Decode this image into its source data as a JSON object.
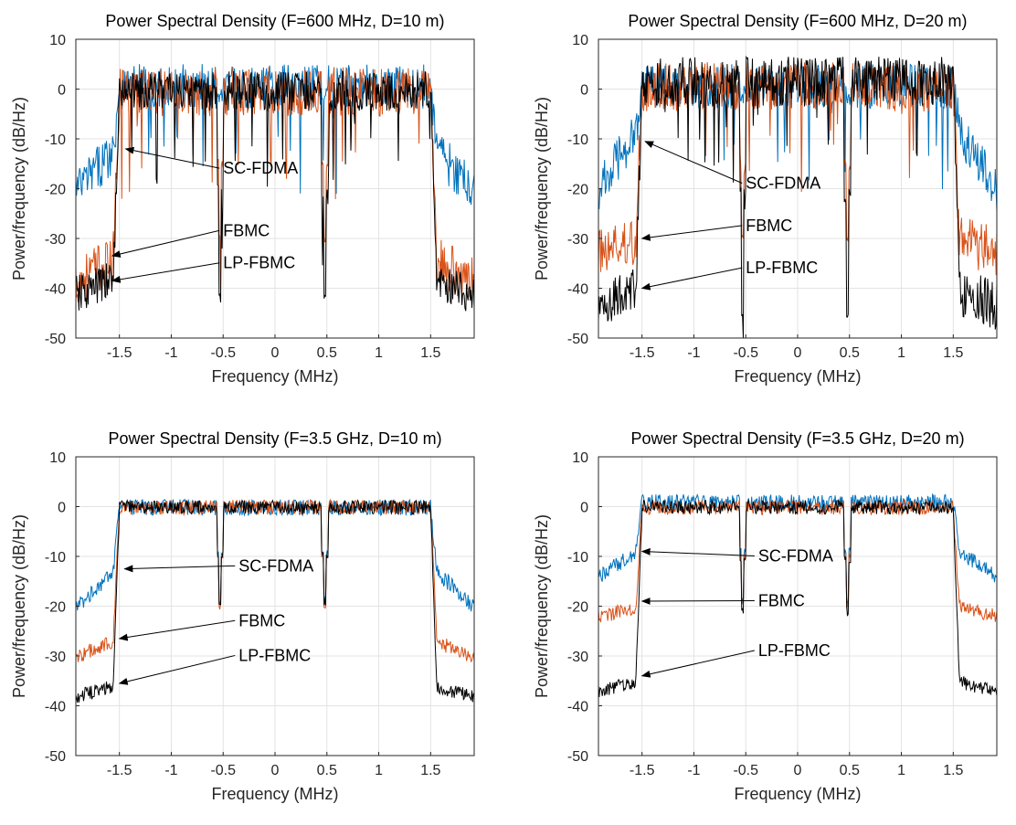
{
  "chart_data": [
    {
      "type": "line",
      "title": "Power Spectral Density (F=600 MHz, D=10 m)",
      "xlabel": "Frequency (MHz)",
      "ylabel": "Power/frequency (dB/Hz)",
      "xlim": [
        -1.92,
        1.92
      ],
      "ylim": [
        -50,
        10
      ],
      "xticks": [
        -1.5,
        -1,
        -0.5,
        0,
        0.5,
        1,
        1.5
      ],
      "xtick_labels": [
        "-1.5",
        "-1",
        "-0.5",
        "0",
        "0.5",
        "1",
        "1.5"
      ],
      "yticks": [
        10,
        0,
        -10,
        -20,
        -30,
        -40,
        -50
      ],
      "ytick_labels": [
        "10",
        "0",
        "-10",
        "-20",
        "-30",
        "-40",
        "-50"
      ],
      "grid": true,
      "series": [
        {
          "key": "scfdma",
          "color": "#0072BD",
          "profile": {
            "in_band": 1,
            "out_band": -20,
            "edge_db": -12,
            "notch": -2,
            "noise": 4.5
          }
        },
        {
          "key": "fbmc",
          "color": "#D95319",
          "profile": {
            "in_band": 0,
            "out_band": -38,
            "edge_db": -34,
            "notch": -30,
            "noise": 5
          }
        },
        {
          "key": "lpfbmc",
          "color": "#000000",
          "profile": {
            "in_band": 0,
            "out_band": -41,
            "edge_db": -38,
            "notch": -42,
            "noise": 4
          }
        }
      ],
      "annotations": [
        {
          "text": "SC-FDMA",
          "text_at": [
            -0.5,
            -17
          ],
          "arrow_to": [
            -1.44,
            -12
          ]
        },
        {
          "text": "FBMC",
          "text_at": [
            -0.5,
            -29.5
          ],
          "arrow_to": [
            -1.57,
            -33.5
          ]
        },
        {
          "text": "LP-FBMC",
          "text_at": [
            -0.5,
            -36
          ],
          "arrow_to": [
            -1.57,
            -38.5
          ]
        }
      ]
    },
    {
      "type": "line",
      "title": "Power Spectral Density (F=600 MHz, D=20 m)",
      "xlabel": "Frequency (MHz)",
      "ylabel": "Power/frequency (dB/Hz)",
      "xlim": [
        -1.92,
        1.92
      ],
      "ylim": [
        -50,
        10
      ],
      "xticks": [
        -1.5,
        -1,
        -0.5,
        0,
        0.5,
        1,
        1.5
      ],
      "xtick_labels": [
        "-1.5",
        "-1",
        "-0.5",
        "0",
        "0.5",
        "1",
        "1.5"
      ],
      "yticks": [
        10,
        0,
        -10,
        -20,
        -30,
        -40,
        -50
      ],
      "ytick_labels": [
        "10",
        "0",
        "-10",
        "-20",
        "-30",
        "-40",
        "-50"
      ],
      "grid": true,
      "series": [
        {
          "key": "scfdma",
          "color": "#0072BD",
          "profile": {
            "in_band": 1,
            "out_band": -20,
            "edge_db": -8,
            "notch": -2,
            "noise": 4.5
          }
        },
        {
          "key": "fbmc",
          "color": "#D95319",
          "profile": {
            "in_band": 1,
            "out_band": -32,
            "edge_db": -30,
            "notch": -30,
            "noise": 5
          }
        },
        {
          "key": "lpfbmc",
          "color": "#000000",
          "profile": {
            "in_band": 2,
            "out_band": -43,
            "edge_db": -40,
            "notch": -45,
            "noise": 5
          }
        }
      ],
      "annotations": [
        {
          "text": "SC-FDMA",
          "text_at": [
            -0.5,
            -20
          ],
          "arrow_to": [
            -1.47,
            -10.5
          ]
        },
        {
          "text": "FBMC",
          "text_at": [
            -0.5,
            -28.5
          ],
          "arrow_to": [
            -1.5,
            -30
          ]
        },
        {
          "text": "LP-FBMC",
          "text_at": [
            -0.5,
            -37
          ],
          "arrow_to": [
            -1.5,
            -40
          ]
        }
      ]
    },
    {
      "type": "line",
      "title": "Power Spectral Density (F=3.5 GHz, D=10 m)",
      "xlabel": "Frequency (MHz)",
      "ylabel": "Power/frequency (dB/Hz)",
      "xlim": [
        -1.92,
        1.92
      ],
      "ylim": [
        -50,
        10
      ],
      "xticks": [
        -1.5,
        -1,
        -0.5,
        0,
        0.5,
        1,
        1.5
      ],
      "xtick_labels": [
        "-1.5",
        "-1",
        "-0.5",
        "0",
        "0.5",
        "1",
        "1.5"
      ],
      "yticks": [
        10,
        0,
        -10,
        -20,
        -30,
        -40,
        -50
      ],
      "ytick_labels": [
        "10",
        "0",
        "-10",
        "-20",
        "-30",
        "-40",
        "-50"
      ],
      "grid": true,
      "series": [
        {
          "key": "scfdma",
          "color": "#0072BD",
          "profile": {
            "in_band": 0,
            "out_band": -20,
            "edge_db": -13,
            "notch": -19,
            "noise": 1.6
          }
        },
        {
          "key": "fbmc",
          "color": "#D95319",
          "profile": {
            "in_band": 0,
            "out_band": -30,
            "edge_db": -27,
            "notch": -20,
            "noise": 1.5
          }
        },
        {
          "key": "lpfbmc",
          "color": "#000000",
          "profile": {
            "in_band": 0,
            "out_band": -38,
            "edge_db": -36,
            "notch": -19,
            "noise": 1.4
          }
        }
      ],
      "annotations": [
        {
          "text": "SC-FDMA",
          "text_at": [
            -0.35,
            -13
          ],
          "arrow_to": [
            -1.45,
            -12.5
          ]
        },
        {
          "text": "FBMC",
          "text_at": [
            -0.35,
            -24
          ],
          "arrow_to": [
            -1.5,
            -26.5
          ]
        },
        {
          "text": "LP-FBMC",
          "text_at": [
            -0.35,
            -31
          ],
          "arrow_to": [
            -1.5,
            -35.5
          ]
        }
      ]
    },
    {
      "type": "line",
      "title": "Power Spectral Density (F=3.5 GHz, D=20 m)",
      "xlabel": "Frequency (MHz)",
      "ylabel": "Power/frequency (dB/Hz)",
      "xlim": [
        -1.92,
        1.92
      ],
      "ylim": [
        -50,
        10
      ],
      "xticks": [
        -1.5,
        -1,
        -0.5,
        0,
        0.5,
        1,
        1.5
      ],
      "xtick_labels": [
        "-1.5",
        "-1",
        "-0.5",
        "0",
        "0.5",
        "1",
        "1.5"
      ],
      "yticks": [
        10,
        0,
        -10,
        -20,
        -30,
        -40,
        -50
      ],
      "ytick_labels": [
        "10",
        "0",
        "-10",
        "-20",
        "-30",
        "-40",
        "-50"
      ],
      "grid": true,
      "series": [
        {
          "key": "scfdma",
          "color": "#0072BD",
          "profile": {
            "in_band": 1,
            "out_band": -14,
            "edge_db": -9,
            "notch": -19,
            "noise": 1.6
          }
        },
        {
          "key": "fbmc",
          "color": "#D95319",
          "profile": {
            "in_band": 0,
            "out_band": -22,
            "edge_db": -20,
            "notch": -20,
            "noise": 1.5
          }
        },
        {
          "key": "lpfbmc",
          "color": "#000000",
          "profile": {
            "in_band": 0,
            "out_band": -37,
            "edge_db": -35,
            "notch": -21,
            "noise": 1.4
          }
        }
      ],
      "annotations": [
        {
          "text": "SC-FDMA",
          "text_at": [
            -0.38,
            -11
          ],
          "arrow_to": [
            -1.5,
            -9
          ]
        },
        {
          "text": "FBMC",
          "text_at": [
            -0.38,
            -20
          ],
          "arrow_to": [
            -1.5,
            -19
          ]
        },
        {
          "text": "LP-FBMC",
          "text_at": [
            -0.38,
            -30
          ],
          "arrow_to": [
            -1.5,
            -34
          ]
        }
      ]
    }
  ]
}
